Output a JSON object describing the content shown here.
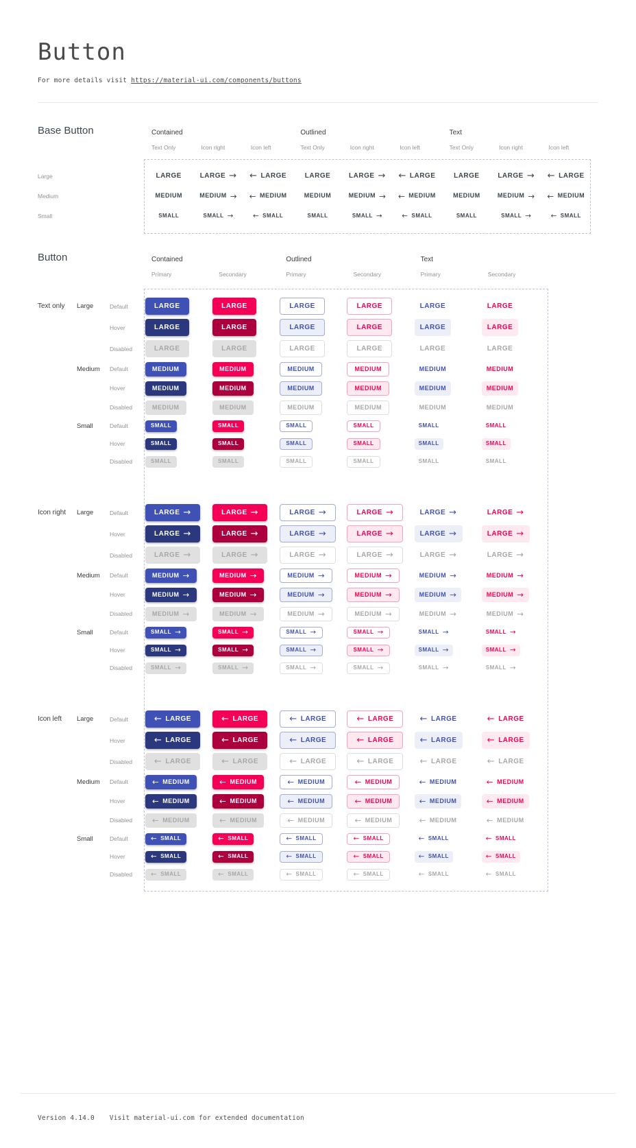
{
  "page": {
    "title": "Button",
    "subtitle_prefix": "For more details visit ",
    "subtitle_link": "https://material-ui.com/components/buttons",
    "footer_version": "Version 4.14.0",
    "footer_text": "Visit material-ui.com for extended documentation"
  },
  "colors": {
    "primary": "#3f51b5",
    "primary_hover": "#2c387e",
    "secondary": "#f50057",
    "secondary_hover": "#ab003d",
    "primary_tint": "#eceff8",
    "secondary_tint": "#fde9ef",
    "outlined_primary_border": "#a3acdb",
    "outlined_secondary_border": "#fa9fc0",
    "disabled_bg": "#e0e0e0",
    "disabled_text": "#a7a7a7",
    "disabled_border": "#dedede",
    "base_text": "#3d454e",
    "label_dark": "#4a4a4a",
    "label_gray": "#939393",
    "divider": "#e7e7e7",
    "dash_border": "#bcc3d4",
    "title_color": "#4a4a4a"
  },
  "icons": {
    "arrow_right": "→",
    "arrow_left": "←"
  },
  "base_section": {
    "title": "Base Button",
    "groups": [
      "Contained",
      "Outlined",
      "Text"
    ],
    "subcolumns": [
      "Text Only",
      "Icon right",
      "Icon left"
    ],
    "subcolumn_icons": [
      "none",
      "right",
      "left"
    ],
    "rows": [
      {
        "label": "Large",
        "button_text": "LARGE"
      },
      {
        "label": "Medium",
        "button_text": "MEDIUM"
      },
      {
        "label": "Small",
        "button_text": "SMALL"
      }
    ]
  },
  "button_section": {
    "title": "Button",
    "groups": [
      "Contained",
      "Outlined",
      "Text"
    ],
    "subcolumns": [
      "Primary",
      "Secondary"
    ],
    "variants": [
      {
        "variant": "contained",
        "color": "primary"
      },
      {
        "variant": "contained",
        "color": "secondary"
      },
      {
        "variant": "outlined",
        "color": "primary"
      },
      {
        "variant": "outlined",
        "color": "secondary"
      },
      {
        "variant": "text",
        "color": "primary"
      },
      {
        "variant": "text",
        "color": "secondary"
      }
    ],
    "icon_groups": [
      {
        "label": "Text only",
        "icon": "none"
      },
      {
        "label": "Icon right",
        "icon": "right"
      },
      {
        "label": "Icon left",
        "icon": "left"
      }
    ],
    "sizes": [
      {
        "label": "Large",
        "text": "LARGE"
      },
      {
        "label": "Medium",
        "text": "MEDIUM"
      },
      {
        "label": "Small",
        "text": "SMALL"
      }
    ],
    "states": [
      "Default",
      "Hover",
      "Disabled"
    ]
  }
}
